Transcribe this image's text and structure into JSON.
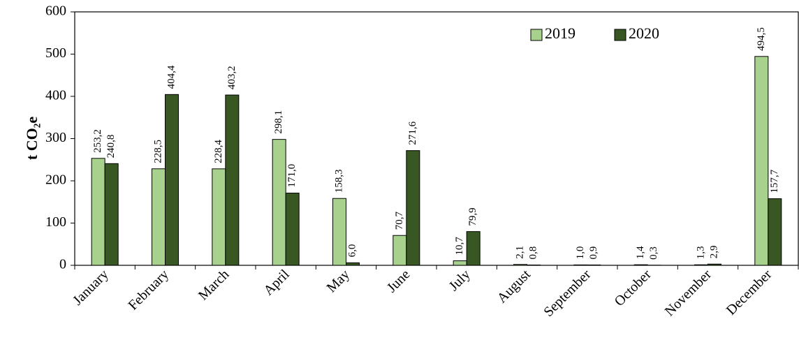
{
  "chart_data": {
    "type": "bar",
    "ylabel": "t CO₂e",
    "categories": [
      "January",
      "February",
      "March",
      "April",
      "May",
      "June",
      "July",
      "August",
      "September",
      "October",
      "November",
      "December"
    ],
    "series": [
      {
        "name": "2019",
        "color": "#a9d18e",
        "values": [
          253.2,
          228.5,
          228.4,
          298.1,
          158.3,
          70.7,
          10.7,
          2.1,
          1.0,
          1.4,
          1.3,
          494.5
        ],
        "value_labels": [
          "253,2",
          "228,5",
          "228,4",
          "298,1",
          "158,3",
          "70,7",
          "10,7",
          "2,1",
          "1,0",
          "1,4",
          "1,3",
          "494,5"
        ]
      },
      {
        "name": "2020",
        "color": "#385723",
        "values": [
          240.8,
          404.4,
          403.2,
          171.0,
          6.0,
          271.6,
          79.9,
          0.8,
          0.9,
          0.3,
          2.9,
          157.7
        ],
        "value_labels": [
          "240,8",
          "404,4",
          "403,2",
          "171,0",
          "6,0",
          "271,6",
          "79,9",
          "0,8",
          "0,9",
          "0,3",
          "2,9",
          "157,7"
        ]
      }
    ],
    "ylim": [
      0,
      600
    ],
    "yticks": [
      0,
      100,
      200,
      300,
      400,
      500,
      600
    ],
    "grid": false,
    "legend": "upper right"
  }
}
